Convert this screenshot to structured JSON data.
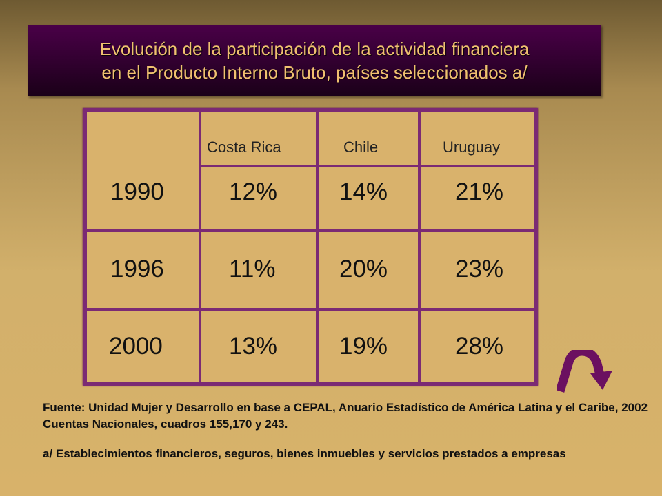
{
  "title": {
    "line1": "Evolución de la participación de la actividad financiera",
    "line2": "en el Producto Interno Bruto, países seleccionados a/"
  },
  "table": {
    "columns": [
      "Costa Rica",
      "Chile",
      "Uruguay"
    ],
    "rows": [
      {
        "year": "1990",
        "values": [
          "12%",
          "14%",
          "21%"
        ]
      },
      {
        "year": "1996",
        "values": [
          "11%",
          "20%",
          "23%"
        ]
      },
      {
        "year": "2000",
        "values": [
          "13%",
          "19%",
          "28%"
        ]
      }
    ]
  },
  "footnotes": {
    "source": "Fuente: Unidad Mujer y Desarrollo en base a CEPAL, Anuario Estadístico de América Latina y el Caribe, 2002 Cuentas Nacionales, cuadros 155,170 y 243.",
    "note": "a/ Establecimientos financieros, seguros, bienes inmuebles y servicios prestados a empresas"
  },
  "colors": {
    "title_bg": "#3a0038",
    "title_text": "#f0c070",
    "table_border": "#7b2a74",
    "cell_bg": "#d9b26c",
    "arrow": "#6b1060"
  },
  "icons": {
    "nav_arrow": "curved-arrow-down-icon"
  }
}
